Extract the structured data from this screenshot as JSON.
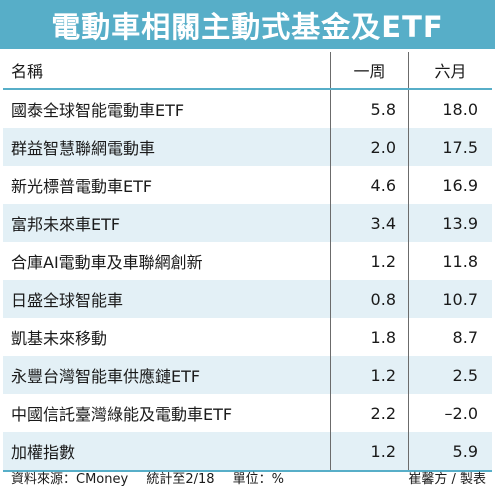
{
  "title": "電動車相關主動式基金及ETF",
  "table": {
    "headers": [
      "名稱",
      "一周",
      "六月"
    ],
    "rows": [
      {
        "name": "國泰全球智能電動車ETF",
        "week": "5.8",
        "month": "18.0"
      },
      {
        "name": "群益智慧聯網電動車",
        "week": "2.0",
        "month": "17.5"
      },
      {
        "name": "新光標普電動車ETF",
        "week": "4.6",
        "month": "16.9"
      },
      {
        "name": "富邦未來車ETF",
        "week": "3.4",
        "month": "13.9"
      },
      {
        "name": "合庫AI電動車及車聯網創新",
        "week": "1.2",
        "month": "11.8"
      },
      {
        "name": "日盛全球智能車",
        "week": "0.8",
        "month": "10.7"
      },
      {
        "name": "凱基未來移動",
        "week": "1.8",
        "month": "8.7"
      },
      {
        "name": "永豐台灣智能車供應鏈ETF",
        "week": "1.2",
        "month": "2.5"
      },
      {
        "name": "中國信託臺灣綠能及電動車ETF",
        "week": "2.2",
        "month": "–2.0"
      },
      {
        "name": "加權指數",
        "week": "1.2",
        "month": "5.9"
      }
    ]
  },
  "footer": {
    "source": "資料來源：CMoney",
    "period": "統計至2/18",
    "unit": "單位：%",
    "credit": "崔馨方 / 製表"
  },
  "colors": {
    "title_bg": "#57aec8",
    "row_shade": "#e3f0f6"
  }
}
